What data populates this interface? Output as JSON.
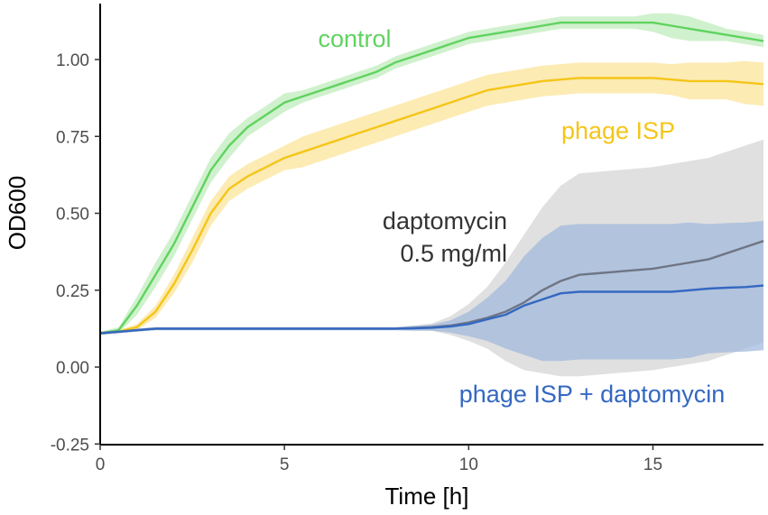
{
  "chart_data": {
    "type": "line",
    "title": "",
    "xlabel": "Time [h]",
    "ylabel": "OD600",
    "xlim": [
      0,
      18
    ],
    "ylim": [
      -0.25,
      1.2
    ],
    "xticks": [
      0,
      5,
      10,
      15
    ],
    "xtick_labels": [
      "0",
      "5",
      "10",
      "15"
    ],
    "yticks": [
      -0.25,
      0,
      0.25,
      0.5,
      0.75,
      1.0
    ],
    "ytick_labels": [
      "-0.25",
      "0.00",
      "0.25",
      "0.50",
      "0.75",
      "1.00"
    ],
    "grid": false,
    "series": [
      {
        "name": "control",
        "label_lines": [
          "control"
        ],
        "color": "#5fd35f",
        "band_color": "#c8efc4",
        "x": [
          0,
          0.5,
          1,
          1.5,
          2,
          2.5,
          3,
          3.5,
          4,
          4.5,
          5,
          5.5,
          6,
          6.5,
          7,
          7.5,
          8,
          8.5,
          9,
          9.5,
          10,
          10.5,
          11,
          11.5,
          12,
          12.5,
          13,
          13.5,
          14,
          14.5,
          15,
          15.5,
          16,
          16.5,
          17,
          17.5,
          18
        ],
        "y": [
          0.11,
          0.12,
          0.2,
          0.3,
          0.4,
          0.52,
          0.64,
          0.72,
          0.78,
          0.82,
          0.86,
          0.88,
          0.9,
          0.92,
          0.94,
          0.96,
          0.99,
          1.01,
          1.03,
          1.05,
          1.07,
          1.08,
          1.09,
          1.1,
          1.11,
          1.12,
          1.12,
          1.12,
          1.12,
          1.12,
          1.12,
          1.11,
          1.1,
          1.09,
          1.08,
          1.07,
          1.06
        ],
        "err": [
          0.005,
          0.01,
          0.03,
          0.04,
          0.04,
          0.04,
          0.04,
          0.04,
          0.03,
          0.03,
          0.03,
          0.02,
          0.02,
          0.02,
          0.02,
          0.02,
          0.02,
          0.02,
          0.02,
          0.02,
          0.02,
          0.02,
          0.02,
          0.02,
          0.02,
          0.02,
          0.02,
          0.02,
          0.02,
          0.02,
          0.03,
          0.04,
          0.04,
          0.03,
          0.02,
          0.02,
          0.02
        ]
      },
      {
        "name": "phage ISP",
        "label_lines": [
          "phage ISP"
        ],
        "color": "#f5c518",
        "band_color": "#fbe8a6",
        "x": [
          0,
          0.5,
          1,
          1.5,
          2,
          2.5,
          3,
          3.5,
          4,
          4.5,
          5,
          5.5,
          6,
          6.5,
          7,
          7.5,
          8,
          8.5,
          9,
          9.5,
          10,
          10.5,
          11,
          11.5,
          12,
          12.5,
          13,
          13.5,
          14,
          14.5,
          15,
          15.5,
          16,
          16.5,
          17,
          17.5,
          18
        ],
        "y": [
          0.11,
          0.115,
          0.13,
          0.18,
          0.27,
          0.38,
          0.5,
          0.58,
          0.62,
          0.65,
          0.68,
          0.7,
          0.72,
          0.74,
          0.76,
          0.78,
          0.8,
          0.82,
          0.84,
          0.86,
          0.88,
          0.9,
          0.91,
          0.92,
          0.93,
          0.935,
          0.94,
          0.94,
          0.94,
          0.94,
          0.94,
          0.935,
          0.93,
          0.93,
          0.93,
          0.925,
          0.92
        ],
        "err": [
          0.005,
          0.005,
          0.01,
          0.02,
          0.03,
          0.04,
          0.04,
          0.04,
          0.04,
          0.04,
          0.04,
          0.05,
          0.05,
          0.05,
          0.05,
          0.05,
          0.05,
          0.05,
          0.05,
          0.05,
          0.05,
          0.05,
          0.05,
          0.05,
          0.05,
          0.05,
          0.05,
          0.05,
          0.05,
          0.05,
          0.05,
          0.05,
          0.06,
          0.06,
          0.06,
          0.07,
          0.07
        ]
      },
      {
        "name": "daptomycin 0.5 mg/ml",
        "label_lines": [
          "daptomycin",
          "0.5 mg/ml"
        ],
        "color": "#6e7585",
        "band_color": "#d6d6d6",
        "x": [
          0,
          0.5,
          1,
          1.5,
          2,
          2.5,
          3,
          3.5,
          4,
          4.5,
          5,
          5.5,
          6,
          6.5,
          7,
          7.5,
          8,
          8.5,
          9,
          9.5,
          10,
          10.5,
          11,
          11.5,
          12,
          12.5,
          13,
          13.5,
          14,
          14.5,
          15,
          15.5,
          16,
          16.5,
          17,
          17.5,
          18
        ],
        "y": [
          0.11,
          0.115,
          0.12,
          0.125,
          0.125,
          0.125,
          0.125,
          0.125,
          0.125,
          0.125,
          0.125,
          0.125,
          0.125,
          0.125,
          0.125,
          0.125,
          0.125,
          0.127,
          0.13,
          0.135,
          0.145,
          0.16,
          0.18,
          0.21,
          0.25,
          0.28,
          0.3,
          0.305,
          0.31,
          0.315,
          0.32,
          0.33,
          0.34,
          0.35,
          0.37,
          0.39,
          0.41
        ],
        "err": [
          0.005,
          0.005,
          0.005,
          0.005,
          0.005,
          0.005,
          0.005,
          0.005,
          0.005,
          0.005,
          0.005,
          0.005,
          0.005,
          0.005,
          0.005,
          0.005,
          0.005,
          0.008,
          0.012,
          0.03,
          0.06,
          0.1,
          0.16,
          0.22,
          0.27,
          0.31,
          0.33,
          0.33,
          0.33,
          0.33,
          0.33,
          0.33,
          0.33,
          0.33,
          0.33,
          0.33,
          0.33
        ]
      },
      {
        "name": "phage ISP + daptomycin",
        "label_lines": [
          "phage ISP + daptomycin"
        ],
        "color": "#3468c2",
        "band_color": "#a3b9dc",
        "x": [
          0,
          0.5,
          1,
          1.5,
          2,
          2.5,
          3,
          3.5,
          4,
          4.5,
          5,
          5.5,
          6,
          6.5,
          7,
          7.5,
          8,
          8.5,
          9,
          9.5,
          10,
          10.5,
          11,
          11.5,
          12,
          12.5,
          13,
          13.5,
          14,
          14.5,
          15,
          15.5,
          16,
          16.5,
          17,
          17.5,
          18
        ],
        "y": [
          0.11,
          0.115,
          0.12,
          0.125,
          0.125,
          0.125,
          0.125,
          0.125,
          0.125,
          0.125,
          0.125,
          0.125,
          0.125,
          0.125,
          0.125,
          0.125,
          0.125,
          0.126,
          0.128,
          0.132,
          0.14,
          0.155,
          0.17,
          0.2,
          0.22,
          0.24,
          0.245,
          0.245,
          0.245,
          0.245,
          0.245,
          0.245,
          0.25,
          0.255,
          0.258,
          0.26,
          0.265
        ],
        "err": [
          0.005,
          0.005,
          0.005,
          0.005,
          0.005,
          0.005,
          0.005,
          0.005,
          0.005,
          0.005,
          0.005,
          0.005,
          0.005,
          0.005,
          0.005,
          0.005,
          0.005,
          0.008,
          0.01,
          0.02,
          0.04,
          0.07,
          0.11,
          0.16,
          0.2,
          0.22,
          0.22,
          0.22,
          0.22,
          0.22,
          0.22,
          0.22,
          0.22,
          0.21,
          0.21,
          0.21,
          0.21
        ]
      }
    ]
  }
}
